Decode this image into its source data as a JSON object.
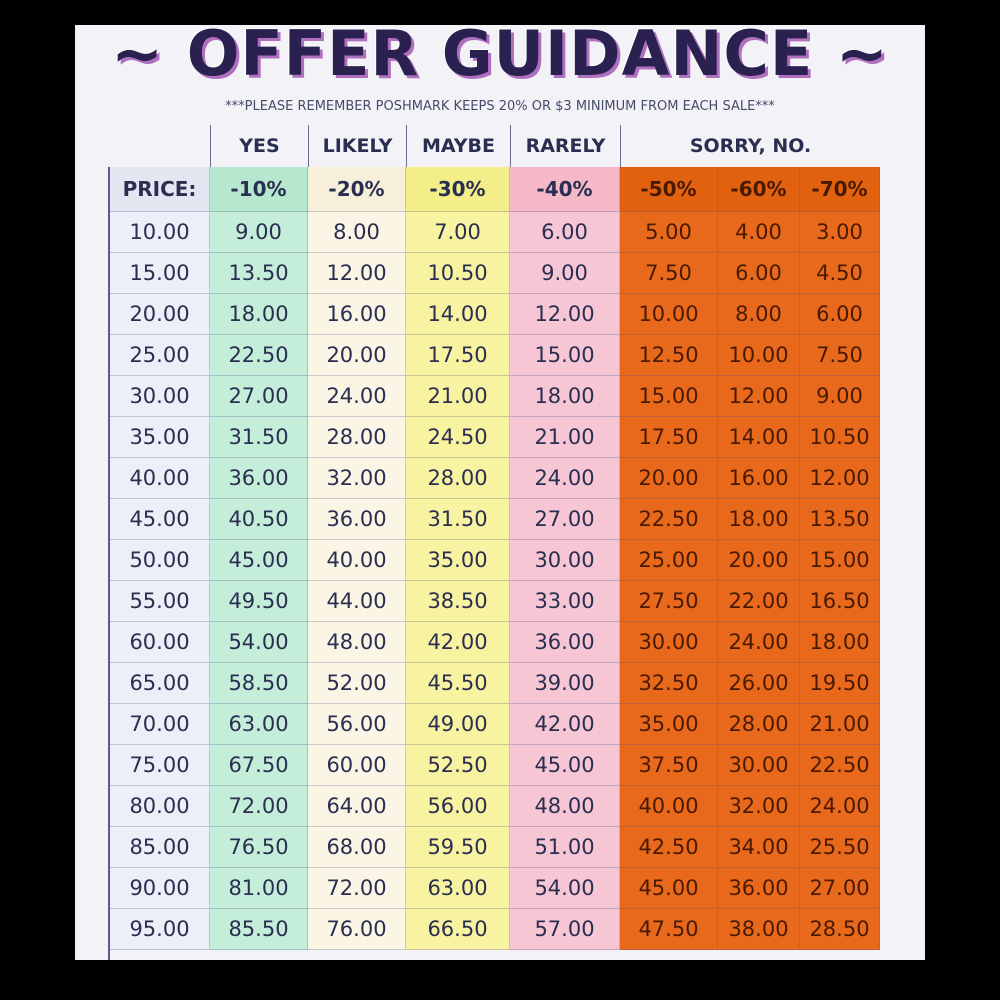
{
  "header": {
    "title": "~ OFFER GUIDANCE ~",
    "subtitle": "***PLEASE REMEMBER POSHMARK KEEPS 20% OR $3 MINIMUM FROM EACH SALE***"
  },
  "table": {
    "groups": [
      "YES",
      "LIKELY",
      "MAYBE",
      "RARELY",
      "SORRY, NO."
    ],
    "columns": [
      "PRICE:",
      "-10%",
      "-20%",
      "-30%",
      "-40%",
      "-50%",
      "-60%",
      "-70%"
    ],
    "rows": [
      [
        "10.00",
        "9.00",
        "8.00",
        "7.00",
        "6.00",
        "5.00",
        "4.00",
        "3.00"
      ],
      [
        "15.00",
        "13.50",
        "12.00",
        "10.50",
        "9.00",
        "7.50",
        "6.00",
        "4.50"
      ],
      [
        "20.00",
        "18.00",
        "16.00",
        "14.00",
        "12.00",
        "10.00",
        "8.00",
        "6.00"
      ],
      [
        "25.00",
        "22.50",
        "20.00",
        "17.50",
        "15.00",
        "12.50",
        "10.00",
        "7.50"
      ],
      [
        "30.00",
        "27.00",
        "24.00",
        "21.00",
        "18.00",
        "15.00",
        "12.00",
        "9.00"
      ],
      [
        "35.00",
        "31.50",
        "28.00",
        "24.50",
        "21.00",
        "17.50",
        "14.00",
        "10.50"
      ],
      [
        "40.00",
        "36.00",
        "32.00",
        "28.00",
        "24.00",
        "20.00",
        "16.00",
        "12.00"
      ],
      [
        "45.00",
        "40.50",
        "36.00",
        "31.50",
        "27.00",
        "22.50",
        "18.00",
        "13.50"
      ],
      [
        "50.00",
        "45.00",
        "40.00",
        "35.00",
        "30.00",
        "25.00",
        "20.00",
        "15.00"
      ],
      [
        "55.00",
        "49.50",
        "44.00",
        "38.50",
        "33.00",
        "27.50",
        "22.00",
        "16.50"
      ],
      [
        "60.00",
        "54.00",
        "48.00",
        "42.00",
        "36.00",
        "30.00",
        "24.00",
        "18.00"
      ],
      [
        "65.00",
        "58.50",
        "52.00",
        "45.50",
        "39.00",
        "32.50",
        "26.00",
        "19.50"
      ],
      [
        "70.00",
        "63.00",
        "56.00",
        "49.00",
        "42.00",
        "35.00",
        "28.00",
        "21.00"
      ],
      [
        "75.00",
        "67.50",
        "60.00",
        "52.50",
        "45.00",
        "37.50",
        "30.00",
        "22.50"
      ],
      [
        "80.00",
        "72.00",
        "64.00",
        "56.00",
        "48.00",
        "40.00",
        "32.00",
        "24.00"
      ],
      [
        "85.00",
        "76.50",
        "68.00",
        "59.50",
        "51.00",
        "42.50",
        "34.00",
        "25.50"
      ],
      [
        "90.00",
        "81.00",
        "72.00",
        "63.00",
        "54.00",
        "45.00",
        "36.00",
        "27.00"
      ],
      [
        "95.00",
        "85.50",
        "76.00",
        "66.50",
        "57.00",
        "47.50",
        "38.00",
        "28.50"
      ]
    ]
  }
}
